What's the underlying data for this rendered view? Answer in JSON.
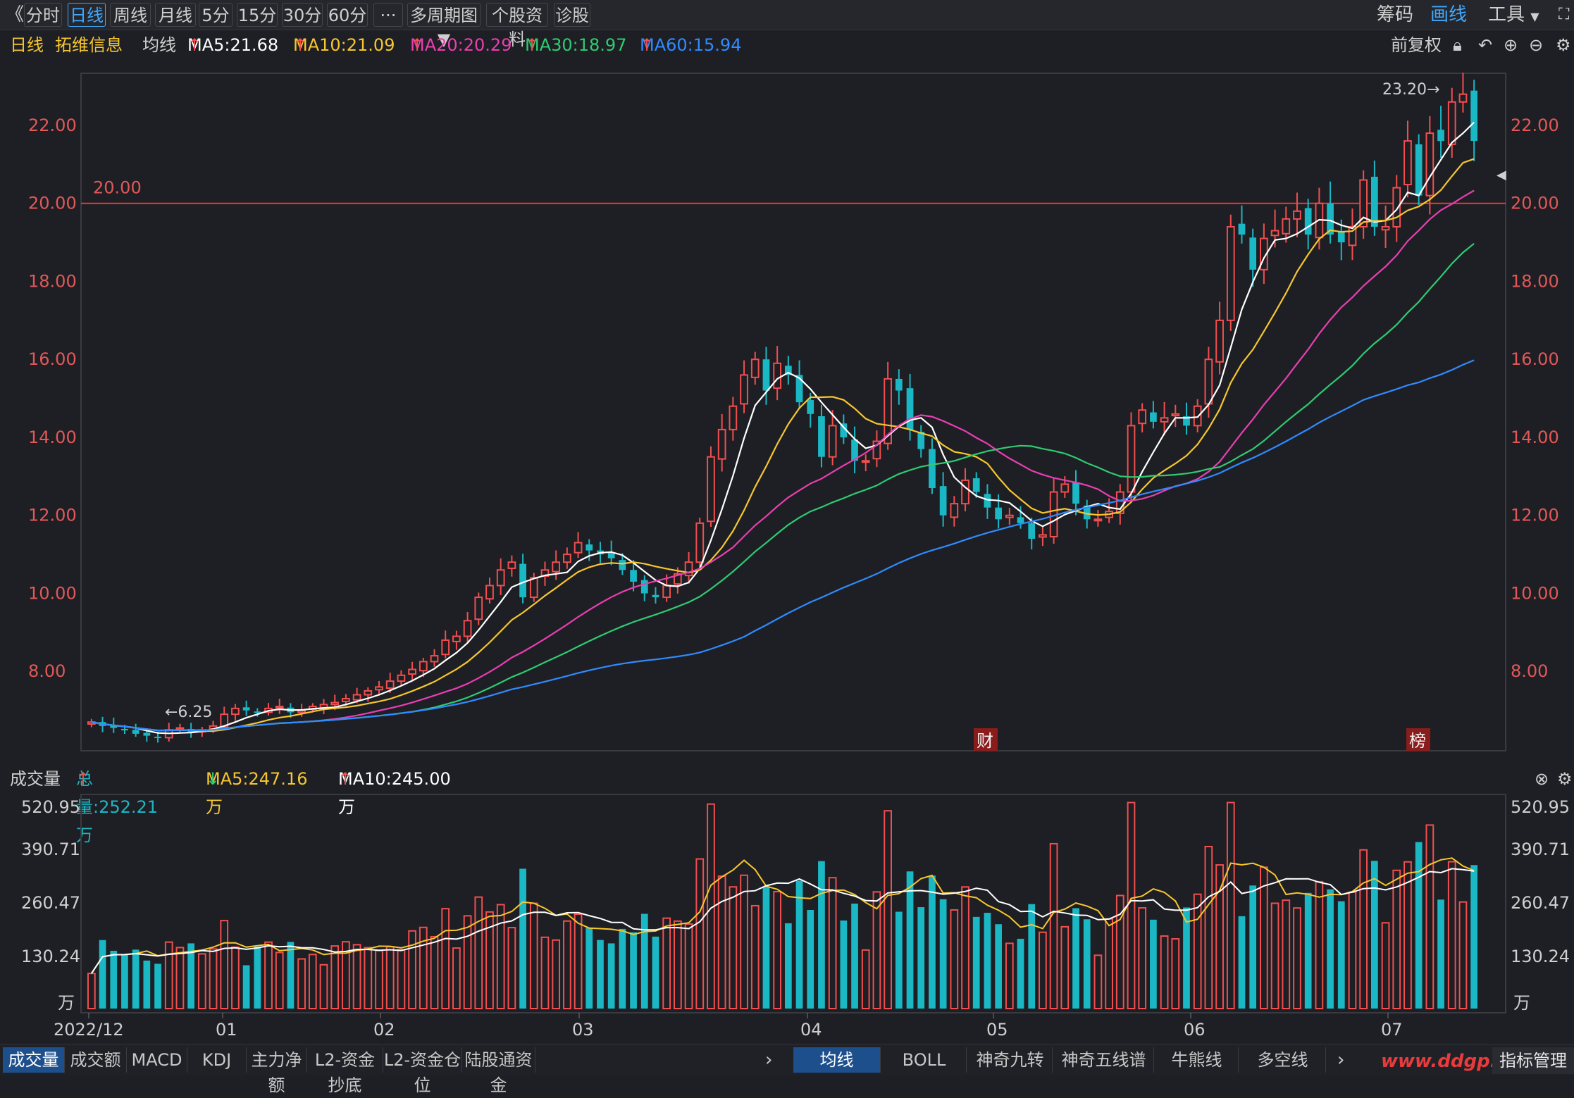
{
  "toolbar": {
    "back": "《",
    "tabs": [
      "分时",
      "日线",
      "周线",
      "月线",
      "5分",
      "15分",
      "30分",
      "60分",
      "···",
      "多周期图",
      "个股资料",
      "诊股"
    ],
    "active_tab": "日线",
    "right": [
      "筹码",
      "画线",
      "工具"
    ]
  },
  "ma_line": {
    "period": "日线",
    "stock": "拓维信息",
    "label": "均线",
    "ma5": "MA5:21.68",
    "ma10": "MA10:21.09",
    "ma20": "MA20:20.29",
    "ma30": "MA30:18.97",
    "ma60": "MA60:15.94",
    "fuquan": "前复权"
  },
  "colors": {
    "ma5": "#ffffff",
    "ma10": "#f7c62f",
    "ma20": "#e83fb1",
    "ma30": "#2ecc71",
    "ma60": "#2f8bff",
    "up": "#f24e4e",
    "down": "#1ab7c4"
  },
  "price_axis": {
    "ticks": [
      "22.00",
      "20.00",
      "18.00",
      "16.00",
      "14.00",
      "12.00",
      "10.00",
      "8.00"
    ]
  },
  "annotations": {
    "high": "23.20→",
    "low": "←6.25",
    "hline": "20.00",
    "cai": "财",
    "bang": "榜"
  },
  "volume": {
    "title": "成交量",
    "total": "总量:252.21万",
    "ma5": "MA5:247.16万",
    "ma10": "MA10:245.00万",
    "ticks": [
      "520.95",
      "390.71",
      "260.47",
      "130.24",
      "万"
    ]
  },
  "x_axis": [
    "2022/12",
    "01",
    "02",
    "03",
    "04",
    "05",
    "06",
    "07"
  ],
  "bottom_tabs_left": [
    "成交量",
    "成交额",
    "MACD",
    "KDJ",
    "主力净额",
    "L2-资金抄底",
    "L2-资金仓位",
    "陆股通资金"
  ],
  "bottom_tabs_right": [
    "均线",
    "BOLL",
    "神奇九转",
    "神奇五线谱",
    "牛熊线",
    "多空线"
  ],
  "bottom_right": "指标管理",
  "watermark": "www.ddgp.net",
  "chart_data": {
    "type": "candlestick",
    "ylim": [
      6.0,
      23.3
    ],
    "close": [
      6.7,
      6.6,
      6.55,
      6.5,
      6.4,
      6.35,
      6.3,
      6.5,
      6.55,
      6.45,
      6.5,
      6.6,
      6.9,
      7.05,
      7.0,
      6.95,
      7.05,
      7.1,
      6.95,
      7.0,
      7.1,
      7.15,
      7.2,
      7.3,
      7.4,
      7.5,
      7.6,
      7.75,
      7.9,
      8.05,
      8.25,
      8.4,
      8.8,
      8.9,
      9.3,
      9.9,
      10.2,
      10.6,
      10.8,
      9.9,
      10.4,
      10.6,
      10.8,
      11.0,
      11.3,
      11.1,
      11.0,
      10.9,
      10.6,
      10.3,
      10.0,
      9.9,
      10.2,
      10.5,
      10.8,
      11.8,
      13.5,
      14.2,
      14.8,
      15.6,
      16.0,
      15.2,
      15.9,
      15.6,
      14.9,
      14.6,
      13.5,
      14.3,
      14.0,
      13.4,
      13.4,
      13.9,
      15.5,
      15.2,
      14.2,
      13.7,
      12.7,
      12.0,
      12.3,
      12.9,
      12.6,
      12.2,
      11.9,
      12.0,
      11.8,
      11.4,
      11.5,
      12.6,
      12.8,
      12.3,
      11.9,
      11.9,
      12.1,
      12.6,
      14.3,
      14.7,
      14.4,
      14.5,
      14.6,
      14.3,
      14.8,
      16.0,
      17.0,
      19.4,
      19.2,
      18.3,
      19.1,
      19.3,
      19.6,
      19.8,
      19.2,
      20.0,
      19.2,
      19.0,
      19.4,
      20.6,
      19.4,
      19.4,
      20.4,
      21.6,
      20.2,
      21.8,
      21.6,
      22.6,
      22.8,
      21.6
    ]
  }
}
